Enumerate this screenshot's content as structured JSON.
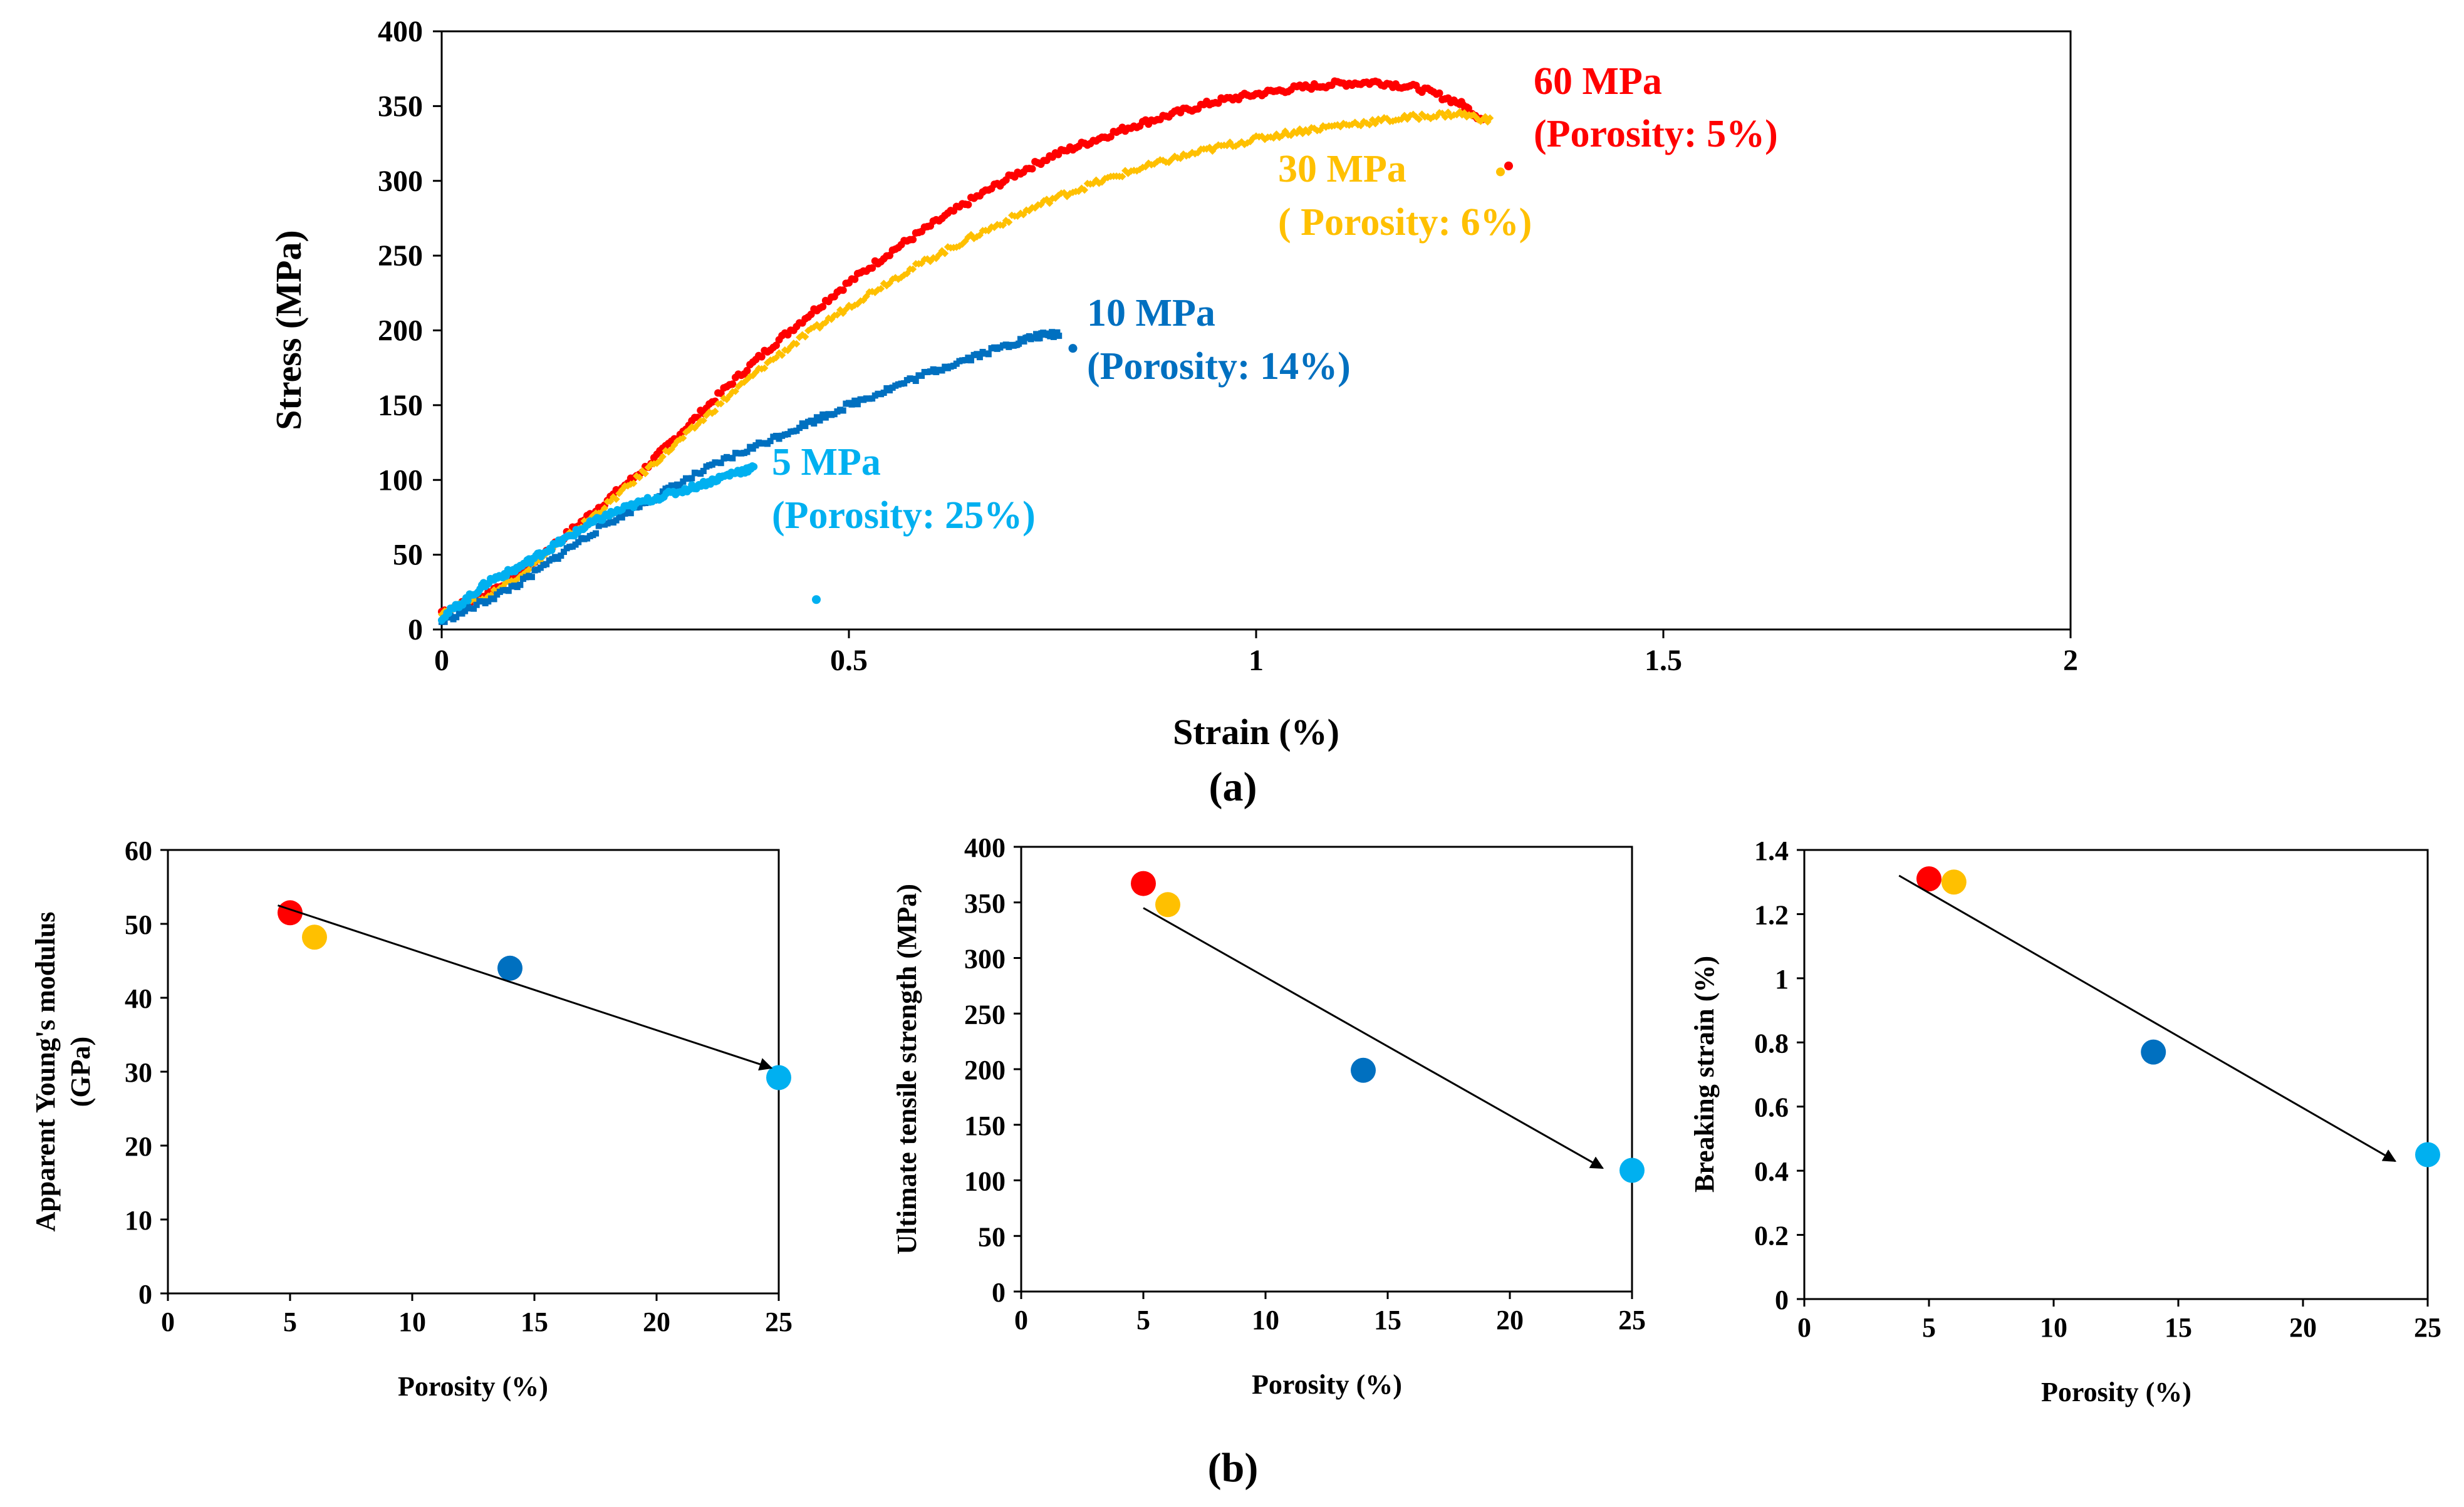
{
  "colors": {
    "p60": "#ff0000",
    "p30": "#ffc000",
    "p10": "#0070c0",
    "p5": "#00b0f0",
    "axis": "#000000",
    "arrow": "#000000"
  },
  "chart_data": [
    {
      "type": "scatter",
      "id": "a",
      "panel_label": "(a)",
      "xlabel": "Strain (%)",
      "ylabel": "Stress (MPa)",
      "xlim": [
        0,
        2
      ],
      "ylim": [
        0,
        400
      ],
      "xticks": [
        "0",
        "0.5",
        "1",
        "1.5",
        "2"
      ],
      "yticks": [
        "0",
        "50",
        "100",
        "150",
        "200",
        "250",
        "300",
        "350",
        "400"
      ],
      "grid": false,
      "series": [
        {
          "name": "60 MPa",
          "annotation": [
            "60 MPa",
            "(Porosity: 5%)"
          ],
          "color_key": "p60",
          "points": [
            [
              0,
              12
            ],
            [
              0.05,
              22
            ],
            [
              0.1,
              40
            ],
            [
              0.15,
              62
            ],
            [
              0.2,
              85
            ],
            [
              0.25,
              108
            ],
            [
              0.3,
              135
            ],
            [
              0.35,
              162
            ],
            [
              0.4,
              187
            ],
            [
              0.45,
              210
            ],
            [
              0.5,
              232
            ],
            [
              0.55,
              252
            ],
            [
              0.6,
              270
            ],
            [
              0.65,
              287
            ],
            [
              0.7,
              303
            ],
            [
              0.75,
              317
            ],
            [
              0.8,
              327
            ],
            [
              0.85,
              337
            ],
            [
              0.9,
              345
            ],
            [
              0.95,
              353
            ],
            [
              1.0,
              358
            ],
            [
              1.05,
              362
            ],
            [
              1.1,
              365
            ],
            [
              1.15,
              366
            ],
            [
              1.2,
              362
            ],
            [
              1.25,
              352
            ],
            [
              1.28,
              340
            ]
          ],
          "break_points": [
            [
              1.31,
              310
            ]
          ]
        },
        {
          "name": "30 MPa",
          "annotation": [
            "30 MPa",
            "( Porosity: 6%)"
          ],
          "color_key": "p30",
          "points": [
            [
              0,
              12
            ],
            [
              0.05,
              20
            ],
            [
              0.1,
              38
            ],
            [
              0.15,
              60
            ],
            [
              0.2,
              82
            ],
            [
              0.25,
              106
            ],
            [
              0.3,
              130
            ],
            [
              0.35,
              155
            ],
            [
              0.4,
              178
            ],
            [
              0.45,
              198
            ],
            [
              0.5,
              216
            ],
            [
              0.55,
              233
            ],
            [
              0.6,
              248
            ],
            [
              0.65,
              262
            ],
            [
              0.7,
              275
            ],
            [
              0.75,
              288
            ],
            [
              0.8,
              298
            ],
            [
              0.85,
              307
            ],
            [
              0.9,
              315
            ],
            [
              0.95,
              322
            ],
            [
              1.0,
              328
            ],
            [
              1.05,
              333
            ],
            [
              1.1,
              337
            ],
            [
              1.15,
              340
            ],
            [
              1.2,
              343
            ],
            [
              1.25,
              345
            ],
            [
              1.29,
              340
            ]
          ],
          "break_points": [
            [
              1.3,
              306
            ]
          ]
        },
        {
          "name": "10 MPa",
          "annotation": [
            "10 MPa",
            "(Porosity: 14%)"
          ],
          "color_key": "p10",
          "points": [
            [
              0,
              5
            ],
            [
              0.05,
              18
            ],
            [
              0.1,
              32
            ],
            [
              0.15,
              52
            ],
            [
              0.2,
              70
            ],
            [
              0.25,
              85
            ],
            [
              0.3,
              100
            ],
            [
              0.35,
              114
            ],
            [
              0.4,
              126
            ],
            [
              0.45,
              138
            ],
            [
              0.5,
              150
            ],
            [
              0.55,
              161
            ],
            [
              0.6,
              172
            ],
            [
              0.65,
              182
            ],
            [
              0.7,
              191
            ],
            [
              0.73,
              196
            ],
            [
              0.76,
              198
            ]
          ],
          "break_points": [
            [
              0.775,
              188
            ]
          ]
        },
        {
          "name": "5 MPa",
          "annotation": [
            "5 MPa",
            "(Porosity: 25%)"
          ],
          "color_key": "p5",
          "points": [
            [
              0,
              8
            ],
            [
              0.03,
              20
            ],
            [
              0.06,
              33
            ],
            [
              0.09,
              40
            ],
            [
              0.12,
              50
            ],
            [
              0.15,
              60
            ],
            [
              0.18,
              70
            ],
            [
              0.21,
              78
            ],
            [
              0.25,
              86
            ],
            [
              0.29,
              92
            ],
            [
              0.33,
              99
            ],
            [
              0.36,
              105
            ],
            [
              0.385,
              108
            ]
          ],
          "break_points": [
            [
              0.46,
              20
            ]
          ]
        }
      ]
    },
    {
      "type": "scatter",
      "id": "b1",
      "panel_label": "(b)",
      "xlabel": "Porosity (%)",
      "ylabel": [
        "Apparent Young's modulus",
        "(GPa)"
      ],
      "xlim": [
        0,
        25
      ],
      "ylim": [
        0,
        60
      ],
      "xticks": [
        "0",
        "5",
        "10",
        "15",
        "20",
        "25"
      ],
      "yticks": [
        "0",
        "10",
        "20",
        "30",
        "40",
        "50",
        "60"
      ],
      "points": [
        {
          "x": 5,
          "y": 51.5,
          "color_key": "p60"
        },
        {
          "x": 6,
          "y": 48.2,
          "color_key": "p30"
        },
        {
          "x": 14,
          "y": 44,
          "color_key": "p10"
        },
        {
          "x": 25,
          "y": 29.2,
          "color_key": "p5"
        }
      ],
      "trend_arrow": {
        "from": [
          4.5,
          52.5
        ],
        "to": [
          24.7,
          30.5
        ]
      }
    },
    {
      "type": "scatter",
      "id": "b2",
      "xlabel": "Porosity (%)",
      "ylabel": [
        "Ultimate tensile strength (MPa)"
      ],
      "xlim": [
        0,
        25
      ],
      "ylim": [
        0,
        400
      ],
      "xticks": [
        "0",
        "5",
        "10",
        "15",
        "20",
        "25"
      ],
      "yticks": [
        "0",
        "50",
        "100",
        "150",
        "200",
        "250",
        "300",
        "350",
        "400"
      ],
      "points": [
        {
          "x": 5,
          "y": 367,
          "color_key": "p60"
        },
        {
          "x": 6,
          "y": 348,
          "color_key": "p30"
        },
        {
          "x": 14,
          "y": 199,
          "color_key": "p10"
        },
        {
          "x": 25,
          "y": 109,
          "color_key": "p5"
        }
      ],
      "trend_arrow": {
        "from": [
          5,
          345
        ],
        "to": [
          23.8,
          111
        ]
      }
    },
    {
      "type": "scatter",
      "id": "b3",
      "xlabel": "Porosity (%)",
      "ylabel": [
        "Breaking strain (%)"
      ],
      "xlim": [
        0,
        25
      ],
      "ylim": [
        0,
        1.4
      ],
      "xticks": [
        "0",
        "5",
        "10",
        "15",
        "20",
        "25"
      ],
      "yticks": [
        "0",
        "0.2",
        "0.4",
        "0.6",
        "0.8",
        "1",
        "1.2",
        "1.4"
      ],
      "points": [
        {
          "x": 5,
          "y": 1.31,
          "color_key": "p60"
        },
        {
          "x": 6,
          "y": 1.3,
          "color_key": "p30"
        },
        {
          "x": 14,
          "y": 0.77,
          "color_key": "p10"
        },
        {
          "x": 25,
          "y": 0.45,
          "color_key": "p5"
        }
      ],
      "trend_arrow": {
        "from": [
          3.8,
          1.32
        ],
        "to": [
          23.7,
          0.43
        ]
      }
    }
  ]
}
